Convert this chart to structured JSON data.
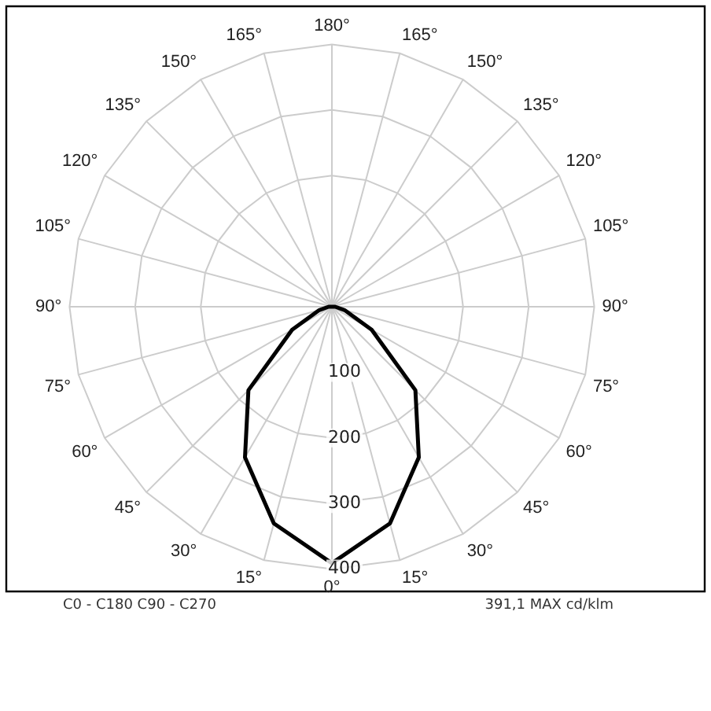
{
  "chart_data": {
    "type": "radar",
    "categories": [
      "180°",
      "165°",
      "150°",
      "135°",
      "120°",
      "105°",
      "90°",
      "75°",
      "60°",
      "45°",
      "30°",
      "15°",
      "0°",
      "15°",
      "30°",
      "45°",
      "60°",
      "75°",
      "90°",
      "105°",
      "120°",
      "135°",
      "150°",
      "165°"
    ],
    "series": [
      {
        "color": "#000000",
        "values": [
          0,
          0,
          0,
          0,
          0,
          0,
          5,
          20,
          70,
          180,
          265,
          342,
          391,
          342,
          265,
          180,
          70,
          20,
          5,
          0,
          0,
          0,
          0,
          0
        ]
      }
    ],
    "ylim": [
      0,
      400
    ],
    "yticks": [
      100,
      200,
      300,
      400
    ],
    "grid": true,
    "legend": false,
    "marker": "none",
    "line_style": "solid",
    "annotations": [
      "C0 - C180 C90 - C270",
      "391,1 MAX cd/klm"
    ]
  }
}
